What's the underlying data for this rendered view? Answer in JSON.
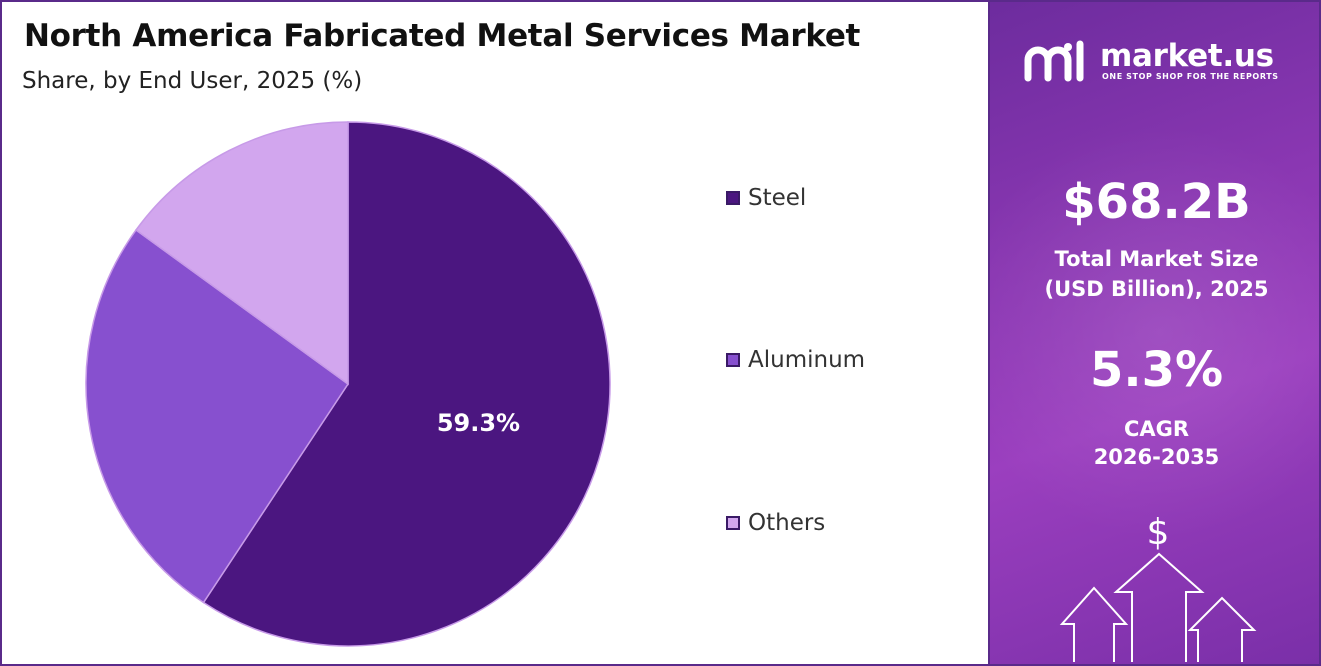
{
  "chart_data": {
    "type": "pie",
    "title": "North America Fabricated Metal Services Market",
    "subtitle": "Share, by End User, 2025 (%)",
    "slices": [
      {
        "label": "Steel",
        "value": 59.3,
        "color": "#4b1680",
        "data_label": "59.3%"
      },
      {
        "label": "Aluminum",
        "value": 25.7,
        "color": "#8750cf",
        "data_label": ""
      },
      {
        "label": "Others",
        "value": 15.0,
        "color": "#d2a6ee",
        "data_label": ""
      }
    ],
    "legend_position": "right"
  },
  "brand": {
    "name": "market.us",
    "tagline": "ONE STOP SHOP FOR THE REPORTS"
  },
  "stats": {
    "market_size_value": "$68.2B",
    "market_size_label_line1": "Total Market Size",
    "market_size_label_line2": "(USD Billion), 2025",
    "cagr_value": "5.3%",
    "cagr_label_line1": "CAGR",
    "cagr_label_line2": "2026-2035"
  },
  "decor": {
    "dollar_symbol": "$"
  }
}
